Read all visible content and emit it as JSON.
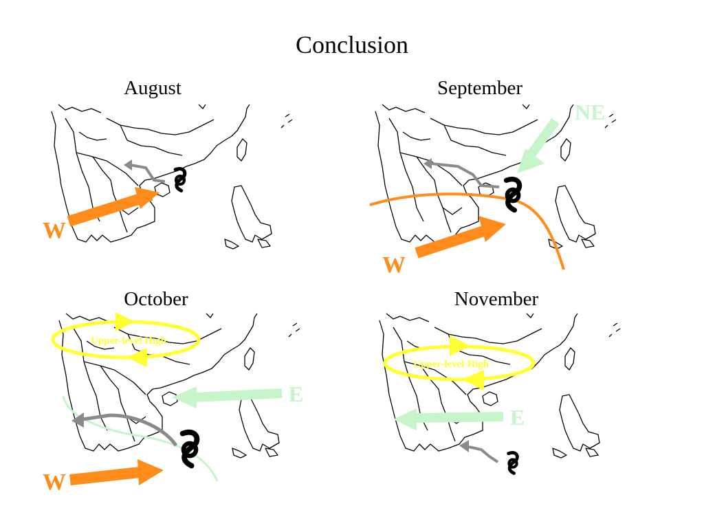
{
  "slide": {
    "title": "Conclusion"
  },
  "panels": [
    {
      "month": "August",
      "labels": [
        "W"
      ]
    },
    {
      "month": "September",
      "labels": [
        "NE",
        "W"
      ]
    },
    {
      "month": "October",
      "labels": [
        "E",
        "W"
      ],
      "high_label": "Upper-level High"
    },
    {
      "month": "November",
      "labels": [
        "E"
      ],
      "high_label": "Upper-level High"
    }
  ],
  "colors": {
    "westerly": "#ff8c1a",
    "easterly": "#c6f5c9",
    "track": "#8a8a8a",
    "high": "#ffff33",
    "land": "#000000"
  },
  "icons": [
    "typhoon-symbol"
  ]
}
